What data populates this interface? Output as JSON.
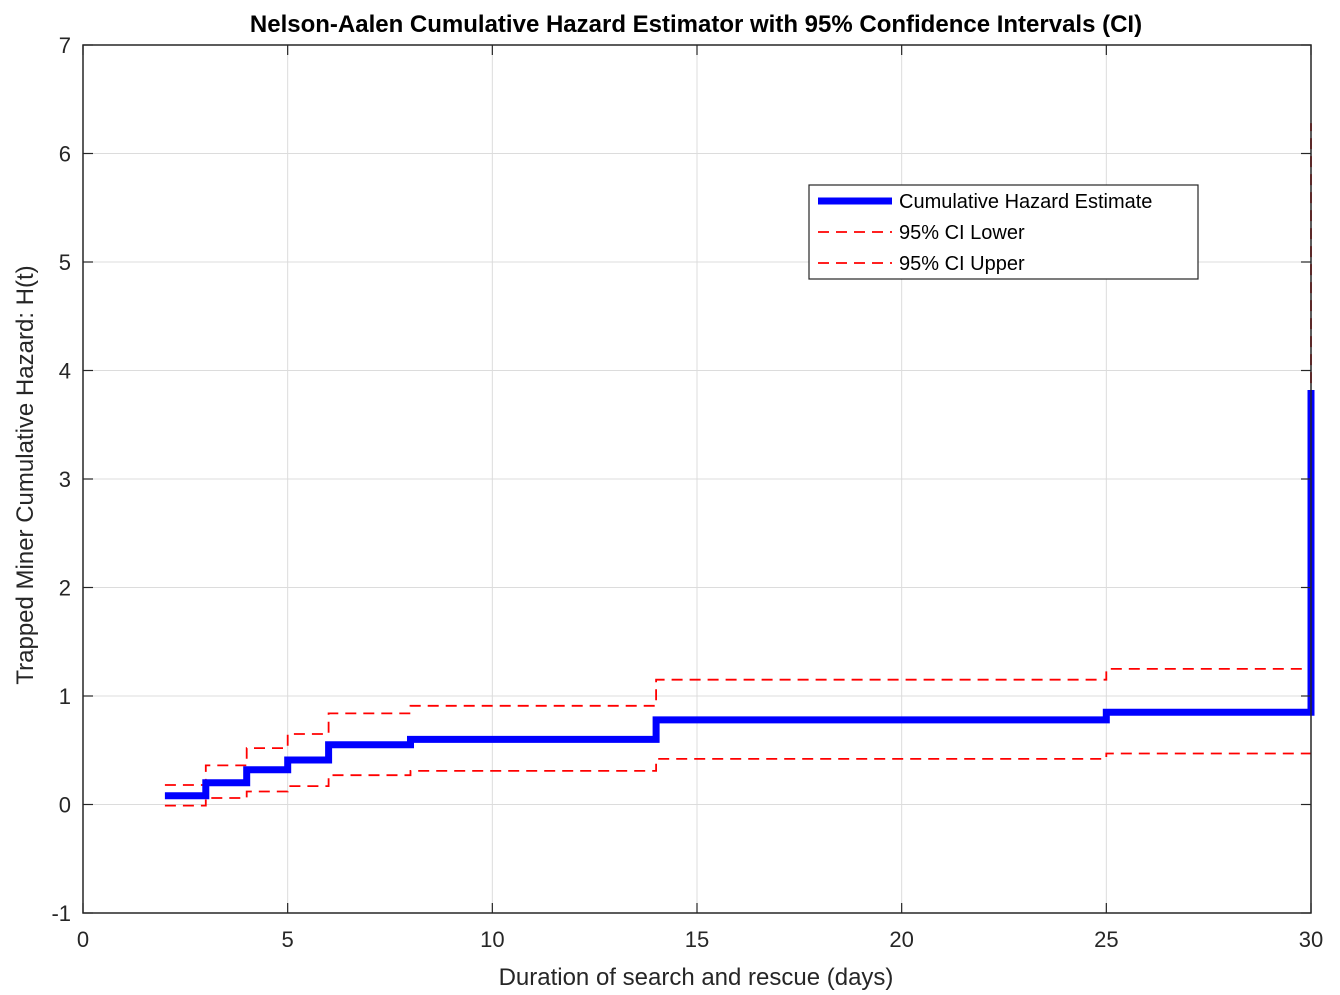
{
  "chart_data": {
    "type": "line",
    "title": "Nelson-Aalen Cumulative Hazard Estimator with 95% Confidence Intervals (CI)",
    "xlabel": "Duration of search and rescue (days)",
    "ylabel": "Trapped Miner Cumulative Hazard: H(t)",
    "xlim": [
      0,
      30
    ],
    "ylim": [
      -1,
      7
    ],
    "xticks": [
      0,
      5,
      10,
      15,
      20,
      25,
      30
    ],
    "yticks": [
      -1,
      0,
      1,
      2,
      3,
      4,
      5,
      6,
      7
    ],
    "grid": true,
    "legend_position": "top-right",
    "series": [
      {
        "name": "Cumulative Hazard Estimate",
        "color": "#0000ff",
        "style": "solid-step",
        "x": [
          2,
          3,
          3,
          4,
          4,
          5,
          5,
          6,
          6,
          8,
          8,
          14,
          14,
          25,
          25,
          30,
          30
        ],
        "y": [
          0.08,
          0.08,
          0.2,
          0.2,
          0.32,
          0.32,
          0.41,
          0.41,
          0.55,
          0.55,
          0.6,
          0.6,
          0.78,
          0.78,
          0.85,
          0.85,
          3.82
        ]
      },
      {
        "name": "95% CI Lower",
        "color": "#ff0000",
        "style": "dashed-step",
        "x": [
          2,
          3,
          3,
          4,
          4,
          5,
          5,
          6,
          6,
          8,
          8,
          14,
          14,
          25,
          25,
          30,
          30
        ],
        "y": [
          -0.01,
          -0.01,
          0.06,
          0.06,
          0.12,
          0.12,
          0.17,
          0.17,
          0.27,
          0.27,
          0.31,
          0.31,
          0.42,
          0.42,
          0.47,
          0.47,
          0.47
        ]
      },
      {
        "name": "95% CI Upper",
        "color": "#ff0000",
        "style": "dashed-step",
        "x": [
          2,
          3,
          3,
          4,
          4,
          5,
          5,
          6,
          6,
          8,
          8,
          14,
          14,
          25,
          25,
          30,
          30
        ],
        "y": [
          0.18,
          0.18,
          0.36,
          0.36,
          0.52,
          0.52,
          0.65,
          0.65,
          0.84,
          0.84,
          0.91,
          0.91,
          1.15,
          1.15,
          1.25,
          1.25,
          6.28
        ]
      }
    ]
  }
}
